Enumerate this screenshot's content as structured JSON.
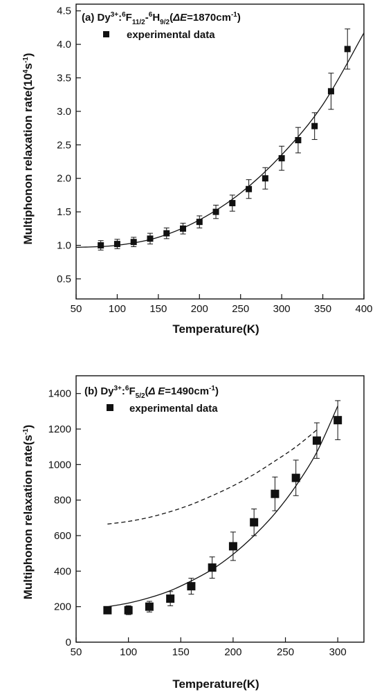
{
  "chart_data": [
    {
      "type": "scatter",
      "panel": "a",
      "annotation": {
        "prefix": "(a) Dy",
        "ion_sup": "3+",
        "colon": ":",
        "level1_sup": "6",
        "level1": "F",
        "level1_sub": "11/2",
        "dash": "-",
        "level2_sup": "6",
        "level2": "H",
        "level2_sub": "9/2",
        "open_paren": "(",
        "delta": "ΔE",
        "value": "=1870cm",
        "unit_sup": "-1",
        "close_paren": ")"
      },
      "legend": {
        "marker": "square",
        "label": "experimental data"
      },
      "xlabel": "Temperature(K)",
      "ylabel": {
        "main": "Multiphonon relaxation rate(10",
        "exp": "4",
        "unit": "s",
        "unit_exp": "-1",
        "close": ")"
      },
      "xlim": [
        50,
        400
      ],
      "ylim": [
        0.2,
        4.6
      ],
      "xticks": [
        50,
        100,
        150,
        200,
        250,
        300,
        350,
        400
      ],
      "xtick_labels": [
        "50",
        "100",
        "150",
        "200",
        "250",
        "300",
        "350",
        "400"
      ],
      "yticks": [
        0.5,
        1.0,
        1.5,
        2.0,
        2.5,
        3.0,
        3.5,
        4.0,
        4.5
      ],
      "ytick_labels": [
        "0.5",
        "1.0",
        "1.5",
        "2.0",
        "2.5",
        "3.0",
        "3.5",
        "4.0",
        "4.5"
      ],
      "series": [
        {
          "kind": "points",
          "x": [
            80,
            100,
            120,
            140,
            160,
            180,
            200,
            220,
            240,
            260,
            280,
            300,
            320,
            340,
            360,
            380
          ],
          "y": [
            1.0,
            1.02,
            1.05,
            1.1,
            1.18,
            1.25,
            1.35,
            1.5,
            1.63,
            1.84,
            2.0,
            2.3,
            2.57,
            2.78,
            3.3,
            3.93
          ],
          "err": [
            0.07,
            0.07,
            0.07,
            0.08,
            0.08,
            0.08,
            0.09,
            0.1,
            0.12,
            0.14,
            0.16,
            0.18,
            0.19,
            0.2,
            0.27,
            0.3
          ]
        },
        {
          "kind": "curve",
          "style": "solid",
          "x": [
            50,
            100,
            150,
            200,
            250,
            300,
            350,
            400
          ],
          "y": [
            0.97,
            1.0,
            1.12,
            1.38,
            1.78,
            2.35,
            3.1,
            4.17
          ]
        }
      ],
      "grid": false
    },
    {
      "type": "scatter",
      "panel": "b",
      "annotation": {
        "prefix": "(b) Dy",
        "ion_sup": "3+",
        "colon": ":",
        "level_sup": "6",
        "level": "F",
        "level_sub": "5/2",
        "open_paren": "(",
        "delta": "Δ E",
        "value": "=1490cm",
        "unit_sup": "-1",
        "close_paren": ")"
      },
      "legend": {
        "marker": "square",
        "label": "experimental data"
      },
      "xlabel": "Temperature(K)",
      "ylabel": {
        "main": "Multiphonon relaxation rate(s",
        "unit_exp": "-1",
        "close": ")"
      },
      "xlim": [
        50,
        325
      ],
      "ylim": [
        0,
        1500
      ],
      "xticks": [
        50,
        100,
        150,
        200,
        250,
        300
      ],
      "xtick_labels": [
        "50",
        "100",
        "150",
        "200",
        "250",
        "300"
      ],
      "yticks": [
        0,
        200,
        400,
        600,
        800,
        1000,
        1200,
        1400
      ],
      "ytick_labels": [
        "0",
        "200",
        "400",
        "600",
        "800",
        "1000",
        "1200",
        "1400"
      ],
      "series": [
        {
          "kind": "points",
          "x": [
            80,
            100,
            120,
            140,
            160,
            180,
            200,
            220,
            240,
            260,
            280,
            300
          ],
          "y": [
            180,
            180,
            200,
            245,
            315,
            420,
            540,
            675,
            835,
            925,
            1135,
            1250
          ],
          "err": [
            20,
            25,
            30,
            40,
            45,
            60,
            80,
            75,
            95,
            100,
            100,
            110
          ]
        },
        {
          "kind": "curve",
          "style": "solid",
          "x": [
            80,
            100,
            120,
            140,
            160,
            180,
            200,
            220,
            240,
            260,
            280,
            300
          ],
          "y": [
            200,
            220,
            250,
            290,
            345,
            410,
            495,
            600,
            725,
            880,
            1070,
            1330
          ]
        },
        {
          "kind": "curve",
          "style": "dashed",
          "x": [
            80,
            100,
            120,
            140,
            160,
            180,
            200,
            220,
            240,
            260,
            280
          ],
          "y": [
            665,
            680,
            703,
            735,
            775,
            825,
            880,
            945,
            1020,
            1100,
            1195
          ]
        }
      ],
      "grid": false
    }
  ]
}
